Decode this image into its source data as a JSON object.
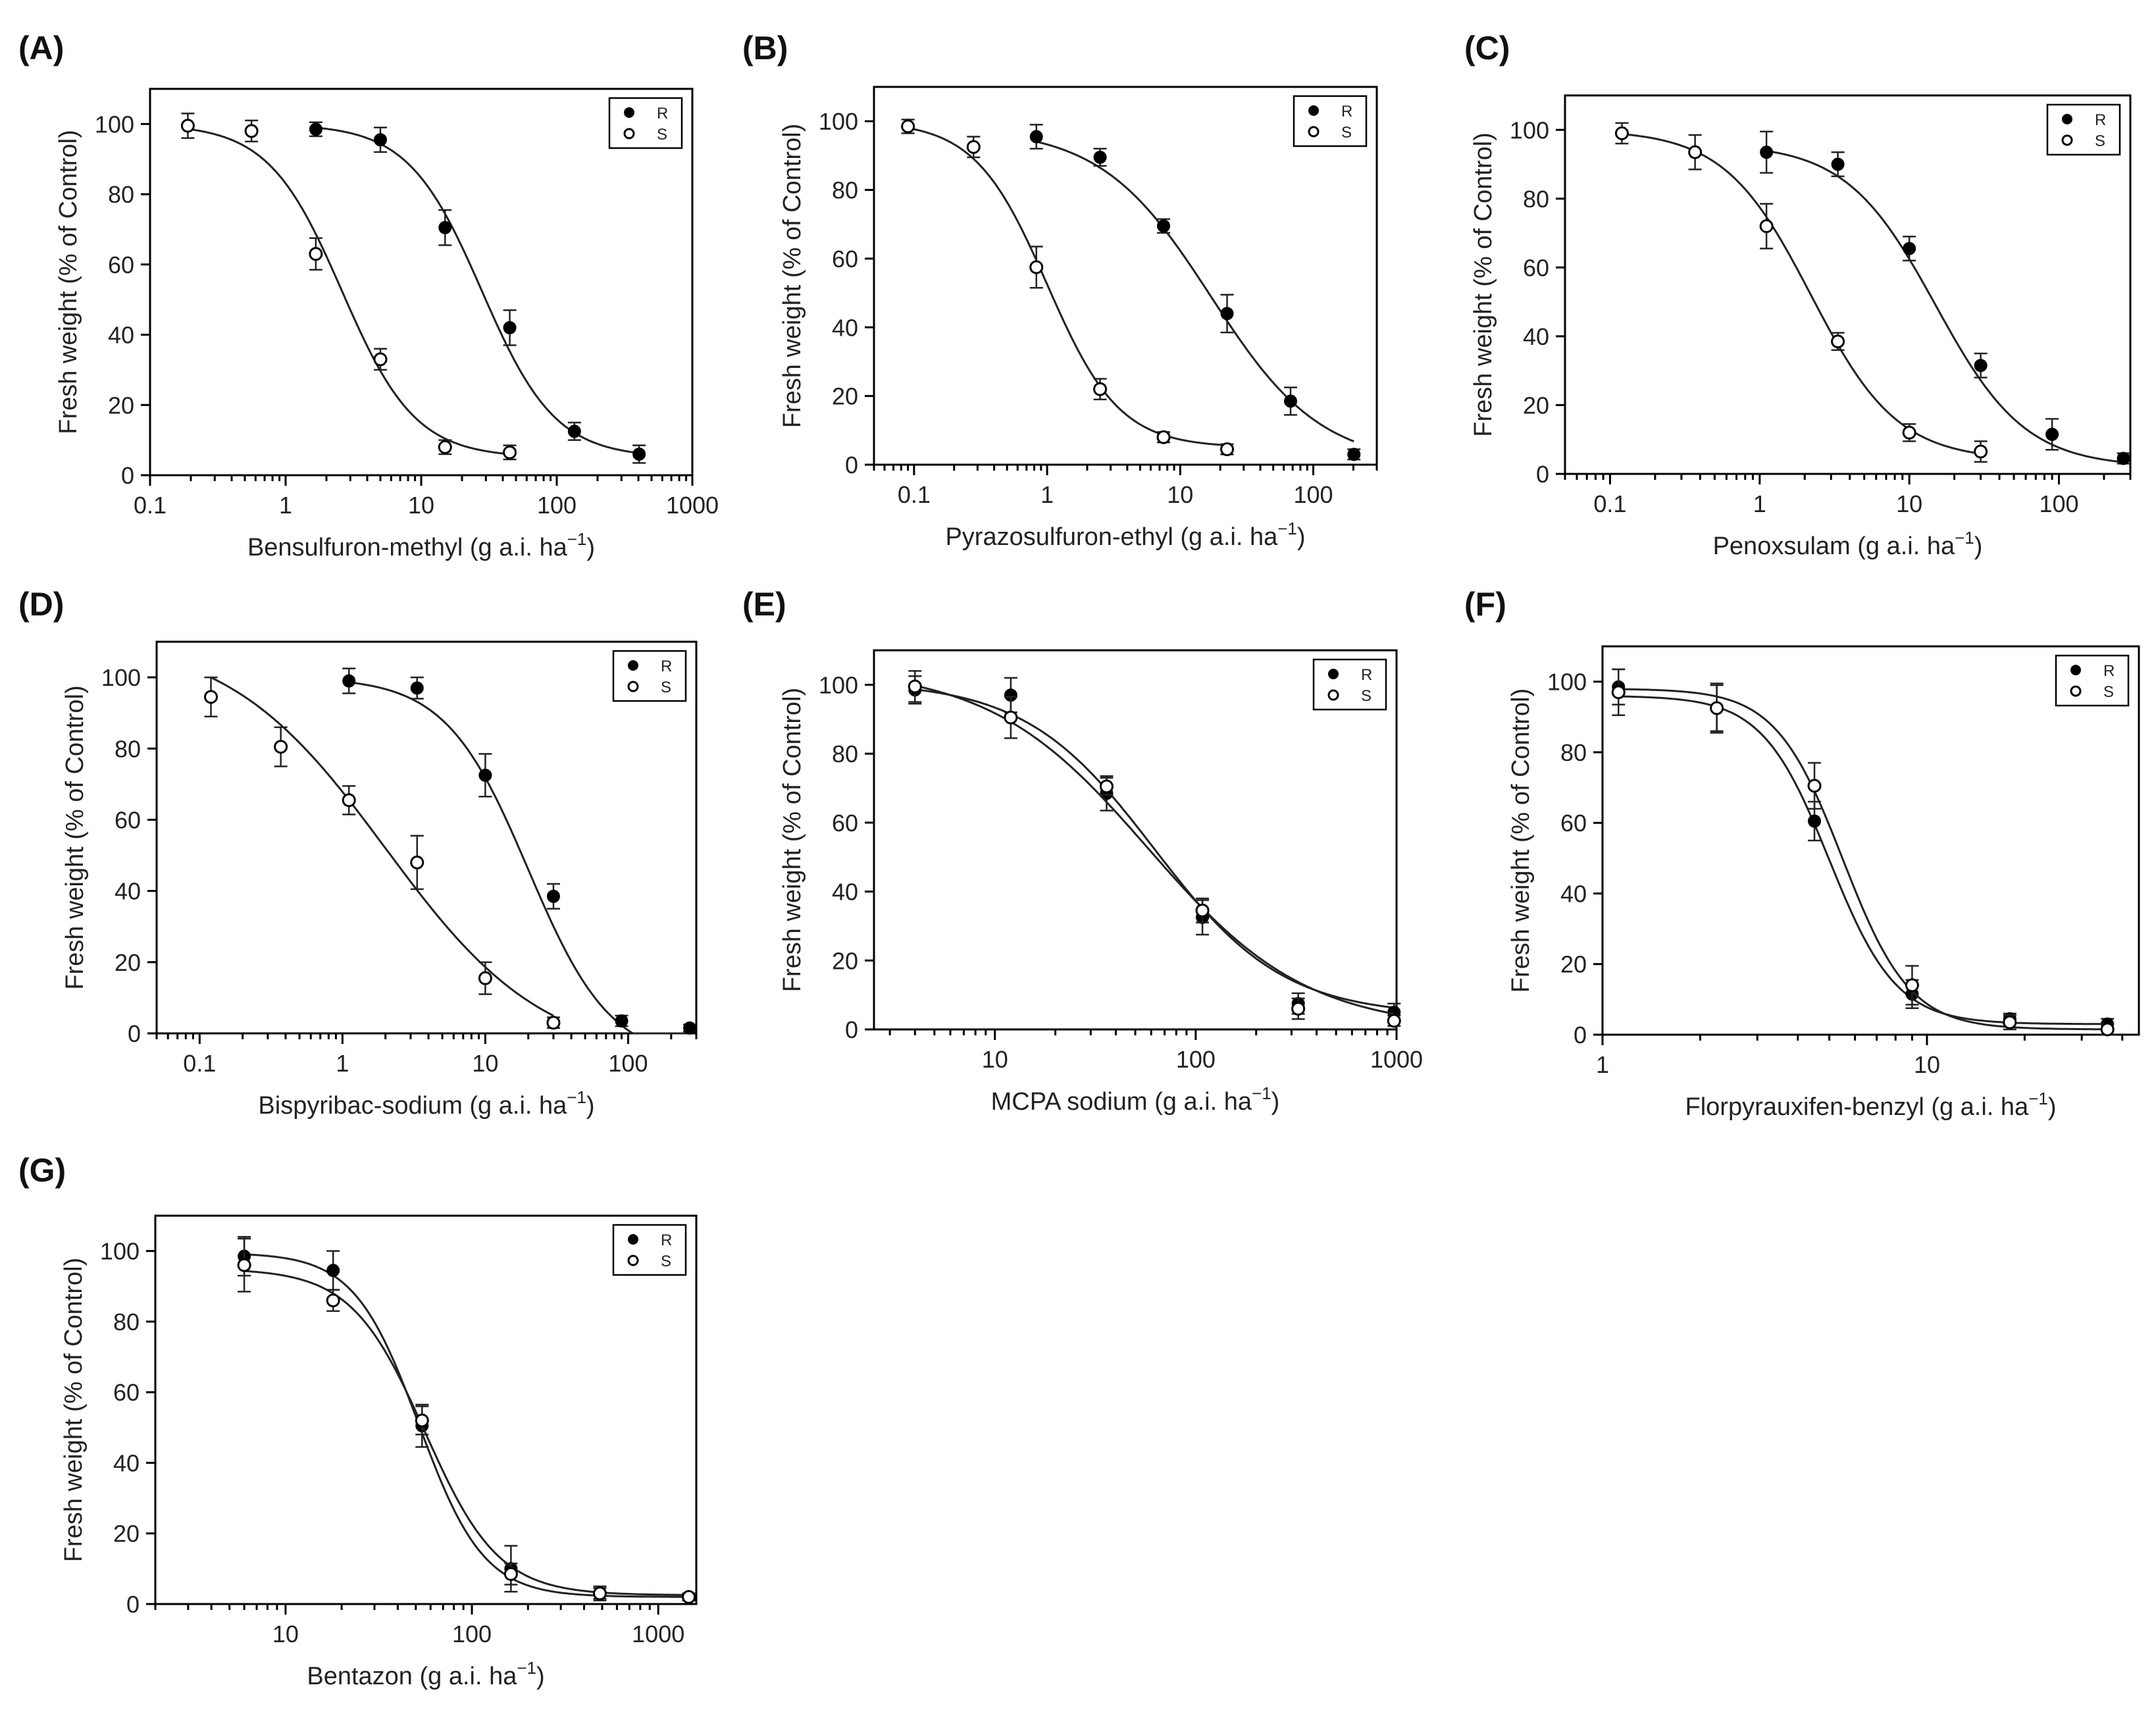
{
  "figure_title": "",
  "colors": {
    "series_R": "#000000",
    "series_S": "#ffffff",
    "curve": "#222222"
  },
  "ylabel": "Fresh weight (% of Control)",
  "x_unit_prefix": "g a.i. ha",
  "x_unit_superscript": "−1",
  "chart_data": [
    {
      "type": "scatter",
      "panel": "(A)",
      "herbicide": "Bensulfuron-methyl",
      "xscale": "log",
      "xlim": [
        0.1,
        1000
      ],
      "ylim": [
        0,
        110
      ],
      "xticks": [
        0.1,
        1,
        10,
        100,
        1000
      ],
      "xtick_labels": [
        "0.1",
        "1",
        "10",
        "100",
        "1000"
      ],
      "yticks": [
        0,
        20,
        40,
        60,
        80,
        100
      ],
      "ytick_labels": [
        "0",
        "20",
        "40",
        "60",
        "80",
        "100"
      ],
      "legend": [
        "R",
        "S"
      ],
      "legend_position": "top-right",
      "series": [
        {
          "name": "R",
          "x": [
            1.67,
            5,
            15,
            45,
            135,
            405
          ],
          "y": [
            98.5,
            95.5,
            70.5,
            42,
            12.5,
            6
          ],
          "err": [
            2,
            3.5,
            5,
            5,
            2.5,
            2.5
          ],
          "fit": {
            "top": 100,
            "bottom": 5,
            "ec50": 28,
            "hill": 1.6
          }
        },
        {
          "name": "S",
          "x": [
            0.19,
            0.56,
            1.67,
            5,
            15,
            45
          ],
          "y": [
            99.5,
            98,
            63,
            33,
            8,
            6.5
          ],
          "err": [
            3.5,
            3,
            4.5,
            3,
            2,
            2
          ],
          "fit": {
            "top": 100,
            "bottom": 5,
            "ec50": 2.6,
            "hill": 1.6
          }
        }
      ]
    },
    {
      "type": "scatter",
      "panel": "(B)",
      "herbicide": "Pyrazosulfuron-ethyl",
      "xscale": "log",
      "xlim": [
        0.05,
        300
      ],
      "ylim": [
        0,
        110
      ],
      "xticks": [
        0.1,
        1,
        10,
        100
      ],
      "xtick_labels": [
        "0.1",
        "1",
        "10",
        "100"
      ],
      "yticks": [
        0,
        20,
        40,
        60,
        80,
        100
      ],
      "ytick_labels": [
        "0",
        "20",
        "40",
        "60",
        "80",
        "100"
      ],
      "legend": [
        "R",
        "S"
      ],
      "legend_position": "top-right",
      "series": [
        {
          "name": "R",
          "x": [
            0.83,
            2.5,
            7.5,
            22.5,
            67.5,
            202
          ],
          "y": [
            95.5,
            89.5,
            69.5,
            44,
            18.5,
            3
          ],
          "err": [
            3.5,
            2.5,
            2,
            5.5,
            4,
            1.5
          ],
          "fit": {
            "top": 98,
            "bottom": 0,
            "ec50": 17,
            "hill": 1.05
          }
        },
        {
          "name": "S",
          "x": [
            0.09,
            0.28,
            0.83,
            2.5,
            7.5,
            22.5
          ],
          "y": [
            98.5,
            92.5,
            57.5,
            22,
            8,
            4.5
          ],
          "err": [
            2,
            3,
            6,
            3,
            1.5,
            1.5
          ],
          "fit": {
            "top": 100,
            "bottom": 5,
            "ec50": 1.0,
            "hill": 1.6
          }
        }
      ]
    },
    {
      "type": "scatter",
      "panel": "(C)",
      "herbicide": "Penoxsulam",
      "xscale": "log",
      "xlim": [
        0.05,
        300
      ],
      "ylim": [
        0,
        110
      ],
      "xticks": [
        0.1,
        1,
        10,
        100
      ],
      "xtick_labels": [
        "0.1",
        "1",
        "10",
        "100"
      ],
      "yticks": [
        0,
        20,
        40,
        60,
        80,
        100
      ],
      "ytick_labels": [
        "0",
        "20",
        "40",
        "60",
        "80",
        "100"
      ],
      "legend": [
        "R",
        "S"
      ],
      "legend_position": "top-right",
      "series": [
        {
          "name": "R",
          "x": [
            1.11,
            3.33,
            10,
            30,
            90,
            270
          ],
          "y": [
            93.5,
            90,
            65.5,
            31.5,
            11.5,
            4.5
          ],
          "err": [
            6,
            3.5,
            3.5,
            3.5,
            4.5,
            1.5
          ],
          "fit": {
            "top": 96,
            "bottom": 2,
            "ec50": 15,
            "hill": 1.45
          }
        },
        {
          "name": "S",
          "x": [
            0.12,
            0.37,
            1.11,
            3.33,
            10,
            30
          ],
          "y": [
            99,
            93.5,
            72,
            38.5,
            12,
            6.5
          ],
          "err": [
            3,
            5,
            6.5,
            2.5,
            2.5,
            3
          ],
          "fit": {
            "top": 100,
            "bottom": 4,
            "ec50": 2.2,
            "hill": 1.5
          }
        }
      ]
    },
    {
      "type": "scatter",
      "panel": "(D)",
      "herbicide": "Bispyribac-sodium",
      "xscale": "log",
      "xlim": [
        0.05,
        300
      ],
      "ylim": [
        0,
        110
      ],
      "xticks": [
        0.1,
        1,
        10,
        100
      ],
      "xtick_labels": [
        "0.1",
        "1",
        "10",
        "100"
      ],
      "yticks": [
        0,
        20,
        40,
        60,
        80,
        100
      ],
      "ytick_labels": [
        "0",
        "20",
        "40",
        "60",
        "80",
        "100"
      ],
      "legend": [
        "R",
        "S"
      ],
      "legend_position": "top-right",
      "series": [
        {
          "name": "R",
          "x": [
            1.11,
            3.33,
            10,
            30,
            90,
            270
          ],
          "y": [
            99,
            97,
            72.5,
            38.5,
            3.5,
            1.5
          ],
          "err": [
            3.5,
            3,
            6,
            3.5,
            1.5,
            1
          ],
          "fit": {
            "top": 100,
            "bottom": -8,
            "ec50": 20,
            "hill": 1.5
          }
        },
        {
          "name": "S",
          "x": [
            0.12,
            0.37,
            1.11,
            3.33,
            10,
            30
          ],
          "y": [
            94.5,
            80.5,
            65.5,
            48,
            15.5,
            3
          ],
          "err": [
            5.5,
            5.5,
            4,
            7.5,
            4.5,
            1.5
          ],
          "fit": {
            "top": 112,
            "bottom": -8,
            "ec50": 2.0,
            "hill": 0.78
          }
        }
      ]
    },
    {
      "type": "scatter",
      "panel": "(E)",
      "herbicide": "MCPA sodium",
      "xscale": "log",
      "xlim": [
        2.5,
        1000
      ],
      "ylim": [
        0,
        110
      ],
      "xticks": [
        10,
        100,
        1000
      ],
      "xtick_labels": [
        "10",
        "100",
        "1000"
      ],
      "yticks": [
        0,
        20,
        40,
        60,
        80,
        100
      ],
      "ytick_labels": [
        "0",
        "20",
        "40",
        "60",
        "80",
        "100"
      ],
      "legend": [
        "R",
        "S"
      ],
      "legend_position": "top-right",
      "series": [
        {
          "name": "R",
          "x": [
            4,
            12,
            36,
            108,
            324,
            972
          ],
          "y": [
            98.5,
            97,
            68.5,
            32.5,
            7.5,
            5
          ],
          "err": [
            4,
            5,
            5,
            5,
            3,
            2.5
          ],
          "fit": {
            "top": 101,
            "bottom": 4,
            "ec50": 62,
            "hill": 1.35
          }
        },
        {
          "name": "S",
          "x": [
            4,
            12,
            36,
            108,
            324,
            972
          ],
          "y": [
            99.5,
            90.5,
            70.5,
            34.5,
            6,
            2.5
          ],
          "err": [
            4.5,
            6,
            2.5,
            3.5,
            3,
            1.5
          ],
          "fit": {
            "top": 105,
            "bottom": 0,
            "ec50": 58,
            "hill": 1.1
          }
        }
      ]
    },
    {
      "type": "scatter",
      "panel": "(F)",
      "herbicide": "Florpyrauxifen-benzyl",
      "xscale": "log",
      "xlim": [
        1,
        45
      ],
      "ylim": [
        0,
        110
      ],
      "xticks": [
        1,
        10
      ],
      "xtick_labels": [
        "1",
        "10"
      ],
      "yticks": [
        0,
        20,
        40,
        60,
        80,
        100
      ],
      "ytick_labels": [
        "0",
        "20",
        "40",
        "60",
        "80",
        "100"
      ],
      "legend": [
        "R",
        "S"
      ],
      "legend_position": "top-right",
      "series": [
        {
          "name": "R",
          "x": [
            1.12,
            2.25,
            4.5,
            9,
            18,
            36
          ],
          "y": [
            98.5,
            92.5,
            60.5,
            11.5,
            4.5,
            3
          ],
          "err": [
            5,
            7,
            5.5,
            4,
            1.5,
            1.5
          ],
          "fit": {
            "top": 96,
            "bottom": 3,
            "ec50": 5.0,
            "hill": 4.2
          }
        },
        {
          "name": "S",
          "x": [
            1.12,
            2.25,
            4.5,
            9,
            18,
            36
          ],
          "y": [
            97,
            92.5,
            70.5,
            14,
            3.5,
            1.5
          ],
          "err": [
            6.5,
            6.5,
            6.5,
            5.5,
            2,
            1.5
          ],
          "fit": {
            "top": 98,
            "bottom": 1.5,
            "ec50": 5.5,
            "hill": 4.2
          }
        }
      ]
    },
    {
      "type": "scatter",
      "panel": "(G)",
      "herbicide": "Bentazon",
      "xscale": "log",
      "xlim": [
        2,
        1600
      ],
      "ylim": [
        0,
        110
      ],
      "xticks": [
        10,
        100,
        1000
      ],
      "xtick_labels": [
        "10",
        "100",
        "1000"
      ],
      "yticks": [
        0,
        20,
        40,
        60,
        80,
        100
      ],
      "ytick_labels": [
        "0",
        "20",
        "40",
        "60",
        "80",
        "100"
      ],
      "legend": [
        "R",
        "S"
      ],
      "legend_position": "top-right",
      "series": [
        {
          "name": "R",
          "x": [
            6,
            18,
            54,
            162,
            486,
            1458
          ],
          "y": [
            98.5,
            94.5,
            50.5,
            10,
            3,
            2
          ],
          "err": [
            5.5,
            5.5,
            6,
            6.5,
            2,
            1
          ],
          "fit": {
            "top": 99.5,
            "bottom": 2,
            "ec50": 52,
            "hill": 2.5
          }
        },
        {
          "name": "S",
          "x": [
            6,
            18,
            54,
            162,
            486,
            1458
          ],
          "y": [
            96,
            86,
            52,
            8.5,
            3,
            2
          ],
          "err": [
            7.5,
            3,
            4,
            3,
            1.5,
            1
          ],
          "fit": {
            "top": 95,
            "bottom": 2.5,
            "ec50": 56,
            "hill": 2.2
          }
        }
      ]
    }
  ]
}
